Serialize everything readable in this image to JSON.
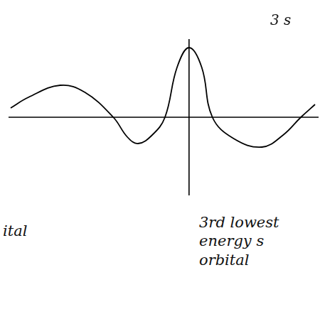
{
  "chart_data": {
    "type": "line",
    "title": "3 s",
    "annotations": [
      "3rd lowest energy s orbital",
      "ital"
    ],
    "x": [
      -252,
      -227,
      -182,
      -147,
      -107,
      -87,
      -72,
      -52,
      -34,
      -17,
      0,
      18,
      33,
      63,
      103,
      133,
      158,
      178
    ],
    "values": [
      13,
      28,
      45,
      35,
      0,
      -28,
      -37,
      -25,
      0,
      70,
      98,
      70,
      0,
      -30,
      -42,
      -25,
      0,
      18
    ],
    "xlim": [
      -255,
      183
    ],
    "ylim": [
      -110,
      110
    ],
    "color": "#000000",
    "grid": false,
    "tick_labels": false
  }
}
